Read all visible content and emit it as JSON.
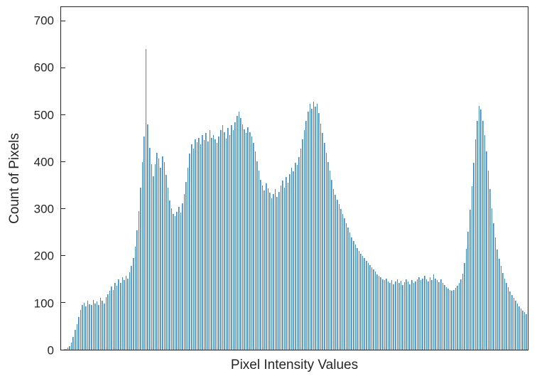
{
  "chart_data": {
    "type": "bar",
    "title": "",
    "xlabel": "Pixel Intensity Values",
    "ylabel": "Count of Pixels",
    "xlim": [
      0,
      255
    ],
    "ylim": [
      0,
      730
    ],
    "yticks": [
      0,
      100,
      200,
      300,
      400,
      500,
      600,
      700
    ],
    "grid": false,
    "legend": false,
    "bar_fill_color": "#7cb5da",
    "bar_edge_color": "#4288ba",
    "axis_color": "#262626",
    "x_description": "histogram bin index equals pixel intensity 0-255",
    "values": [
      0,
      1,
      2,
      4,
      8,
      15,
      28,
      42,
      55,
      70,
      85,
      95,
      100,
      92,
      104,
      97,
      95,
      106,
      98,
      103,
      96,
      110,
      104,
      99,
      112,
      118,
      125,
      135,
      128,
      142,
      136,
      150,
      143,
      155,
      148,
      158,
      152,
      165,
      178,
      195,
      220,
      255,
      295,
      345,
      400,
      455,
      640,
      480,
      430,
      395,
      370,
      395,
      420,
      408,
      388,
      412,
      400,
      372,
      345,
      318,
      302,
      290,
      284,
      294,
      305,
      292,
      312,
      332,
      358,
      388,
      418,
      438,
      428,
      448,
      442,
      452,
      438,
      458,
      447,
      462,
      444,
      468,
      452,
      458,
      448,
      440,
      454,
      468,
      478,
      464,
      450,
      472,
      458,
      478,
      468,
      484,
      498,
      508,
      494,
      480,
      470,
      462,
      474,
      464,
      454,
      440,
      422,
      402,
      382,
      362,
      350,
      340,
      354,
      344,
      334,
      322,
      332,
      342,
      326,
      336,
      350,
      360,
      346,
      368,
      356,
      374,
      388,
      380,
      398,
      394,
      410,
      428,
      448,
      468,
      488,
      508,
      524,
      514,
      528,
      518,
      524,
      504,
      482,
      462,
      440,
      420,
      400,
      382,
      362,
      342,
      330,
      320,
      310,
      300,
      290,
      280,
      270,
      260,
      250,
      240,
      232,
      224,
      216,
      210,
      205,
      200,
      195,
      190,
      185,
      180,
      176,
      171,
      166,
      161,
      158,
      154,
      150,
      148,
      152,
      145,
      142,
      148,
      140,
      145,
      150,
      143,
      147,
      138,
      144,
      150,
      145,
      140,
      148,
      142,
      146,
      150,
      155,
      148,
      152,
      158,
      150,
      145,
      155,
      148,
      160,
      152,
      148,
      144,
      150,
      142,
      138,
      134,
      130,
      128,
      125,
      128,
      132,
      136,
      142,
      150,
      162,
      185,
      215,
      252,
      298,
      348,
      398,
      448,
      488,
      520,
      512,
      488,
      458,
      422,
      382,
      342,
      302,
      270,
      240,
      214,
      194,
      178,
      164,
      152,
      142,
      133,
      124,
      117,
      110,
      104,
      98,
      93,
      88,
      84,
      80,
      76
    ]
  }
}
